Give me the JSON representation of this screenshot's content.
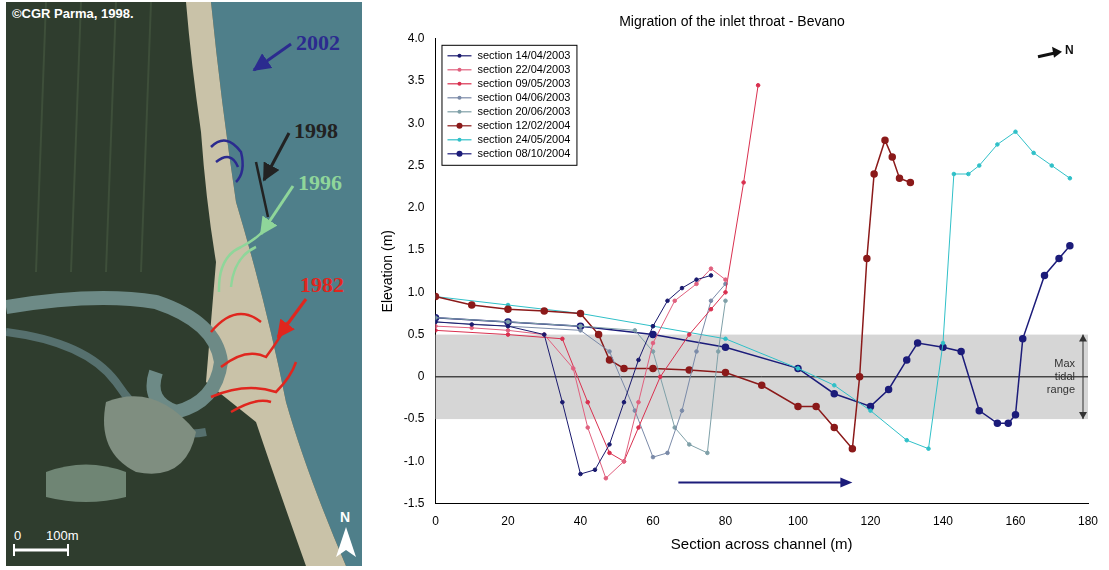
{
  "map": {
    "copyright": "©CGR Parma, 1998.",
    "annotations": [
      {
        "label": "2002",
        "color": "#2b2b8f"
      },
      {
        "label": "1998",
        "color": "#222222"
      },
      {
        "label": "1996",
        "color": "#8fd69a"
      },
      {
        "label": "1982",
        "color": "#e0261e"
      }
    ],
    "scale_bar": [
      "0",
      "100m"
    ],
    "north": "N"
  },
  "chart_data": {
    "type": "line",
    "title": "Migration of the inlet throat - Bevano",
    "x_label": "Section across channel (m)",
    "y_label": "Elevation (m)",
    "xlim": [
      0,
      180
    ],
    "xticks": [
      0,
      20,
      40,
      60,
      80,
      100,
      120,
      140,
      160,
      180
    ],
    "ylim": [
      -1.5,
      4
    ],
    "yticks": [
      -1.5,
      -1,
      -0.5,
      0,
      0.5,
      1,
      1.5,
      2,
      2.5,
      3,
      3.5,
      4
    ],
    "grid": false,
    "legend": "upper left",
    "tidal_range": {
      "label": "Max tidal range",
      "values": [
        -0.5,
        0.5
      ]
    },
    "arrow": {
      "x": [
        67,
        115
      ],
      "y": -1.25
    },
    "north": "N",
    "series": [
      {
        "name": "section 14/04/2003",
        "color": "#1a1a6e",
        "marker": "dot",
        "x": [
          0,
          10,
          20,
          30,
          35,
          40,
          44,
          48,
          52,
          56,
          60,
          64,
          68,
          72,
          76
        ],
        "values": [
          0.65,
          0.62,
          0.6,
          0.5,
          -0.3,
          -1.15,
          -1.1,
          -0.8,
          -0.3,
          0.2,
          0.6,
          0.9,
          1.05,
          1.15,
          1.2
        ]
      },
      {
        "name": "section 22/04/2003",
        "color": "#e0607e",
        "marker": "dot",
        "x": [
          0,
          10,
          20,
          30,
          38,
          42,
          47,
          52,
          56,
          60,
          66,
          72,
          76,
          80
        ],
        "values": [
          0.6,
          0.58,
          0.55,
          0.5,
          0.1,
          -0.6,
          -1.2,
          -1.0,
          -0.3,
          0.4,
          0.9,
          1.1,
          1.28,
          1.15
        ]
      },
      {
        "name": "section 09/05/2003",
        "color": "#d9304f",
        "marker": "dot",
        "x": [
          0,
          20,
          35,
          42,
          48,
          52,
          56,
          62,
          70,
          76,
          80,
          85,
          89
        ],
        "values": [
          0.55,
          0.5,
          0.45,
          -0.3,
          -0.9,
          -1.0,
          -0.6,
          0.0,
          0.5,
          0.8,
          1.0,
          2.3,
          3.45
        ]
      },
      {
        "name": "section 04/06/2003",
        "color": "#7a8aa8",
        "marker": "dot",
        "x": [
          0,
          20,
          40,
          48,
          55,
          60,
          64,
          68,
          72,
          76,
          80
        ],
        "values": [
          0.65,
          0.6,
          0.55,
          0.3,
          -0.4,
          -0.95,
          -0.9,
          -0.4,
          0.3,
          0.9,
          1.1
        ]
      },
      {
        "name": "section 20/06/2003",
        "color": "#7fa0a8",
        "marker": "dot",
        "x": [
          0,
          20,
          40,
          55,
          60,
          66,
          70,
          75,
          78,
          80
        ],
        "values": [
          0.7,
          0.65,
          0.6,
          0.55,
          0.3,
          -0.6,
          -0.8,
          -0.9,
          0.3,
          0.9
        ]
      },
      {
        "name": "section 12/02/2004",
        "color": "#8b1a1a",
        "marker": "circle",
        "x": [
          0,
          10,
          20,
          30,
          40,
          45,
          48,
          52,
          60,
          70,
          80,
          90,
          100,
          105,
          110,
          115,
          117,
          119,
          121,
          124,
          126,
          128,
          131
        ],
        "values": [
          0.95,
          0.85,
          0.8,
          0.78,
          0.75,
          0.5,
          0.2,
          0.1,
          0.1,
          0.08,
          0.05,
          -0.1,
          -0.35,
          -0.35,
          -0.6,
          -0.85,
          0.0,
          1.4,
          2.4,
          2.8,
          2.6,
          2.35,
          2.3
        ]
      },
      {
        "name": "section 24/05/2004",
        "color": "#30c0c8",
        "marker": "dot",
        "x": [
          0,
          20,
          40,
          60,
          80,
          100,
          110,
          120,
          130,
          136,
          140,
          143,
          147,
          150,
          155,
          160,
          165,
          170,
          175
        ],
        "values": [
          0.95,
          0.85,
          0.75,
          0.6,
          0.45,
          0.1,
          -0.1,
          -0.4,
          -0.75,
          -0.85,
          0.4,
          2.4,
          2.4,
          2.5,
          2.75,
          2.9,
          2.65,
          2.5,
          2.35
        ]
      },
      {
        "name": "section 08/10/2004",
        "color": "#1c1c7a",
        "marker": "circle",
        "x": [
          0,
          20,
          40,
          60,
          80,
          100,
          110,
          120,
          125,
          130,
          133,
          140,
          145,
          150,
          155,
          158,
          160,
          162,
          168,
          172,
          175
        ],
        "values": [
          0.7,
          0.65,
          0.6,
          0.5,
          0.35,
          0.1,
          -0.2,
          -0.35,
          -0.15,
          0.2,
          0.4,
          0.35,
          0.3,
          -0.4,
          -0.55,
          -0.55,
          -0.45,
          0.45,
          1.2,
          1.4,
          1.55
        ]
      }
    ]
  }
}
